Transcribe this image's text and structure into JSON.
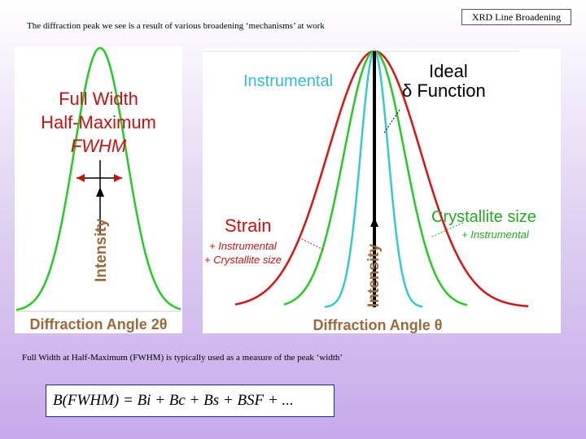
{
  "slide": {
    "badge": "XRD Line Broadening",
    "caption_top": "The diffraction peak we see is a result of various broadening ‘mechanisms’ at work",
    "caption_bottom": "Full Width at Half-Maximum (FWHM) is typically used as a measure of the peak ‘width’",
    "formula": "B(FWHM) = Bi + Bc + Bs + BSF + ..."
  },
  "left_panel": {
    "title_line1": "Full Width",
    "title_line2": "Half-Maximum",
    "title_line3": "FWHM",
    "y_label": "Intensity",
    "x_label": "Diffraction Angle 2θ"
  },
  "right_panel": {
    "label_instrumental": "Instrumental",
    "label_ideal_1": "Ideal",
    "label_ideal_2": "δ Function",
    "label_strain": "Strain",
    "label_strain_sub1": "+ Instrumental",
    "label_strain_sub2": "+ Crystallite size",
    "label_crystallite": "Crystallite size",
    "label_crystallite_sub": "+ Instrumental",
    "y_label": "Intensity",
    "x_label": "Diffraction Angle θ"
  },
  "colors": {
    "title_red": "#cc1111",
    "green": "#22cc22",
    "cyan": "#33cccc",
    "red_curve": "#dd1111",
    "axis_text": "#9a6a3a"
  }
}
